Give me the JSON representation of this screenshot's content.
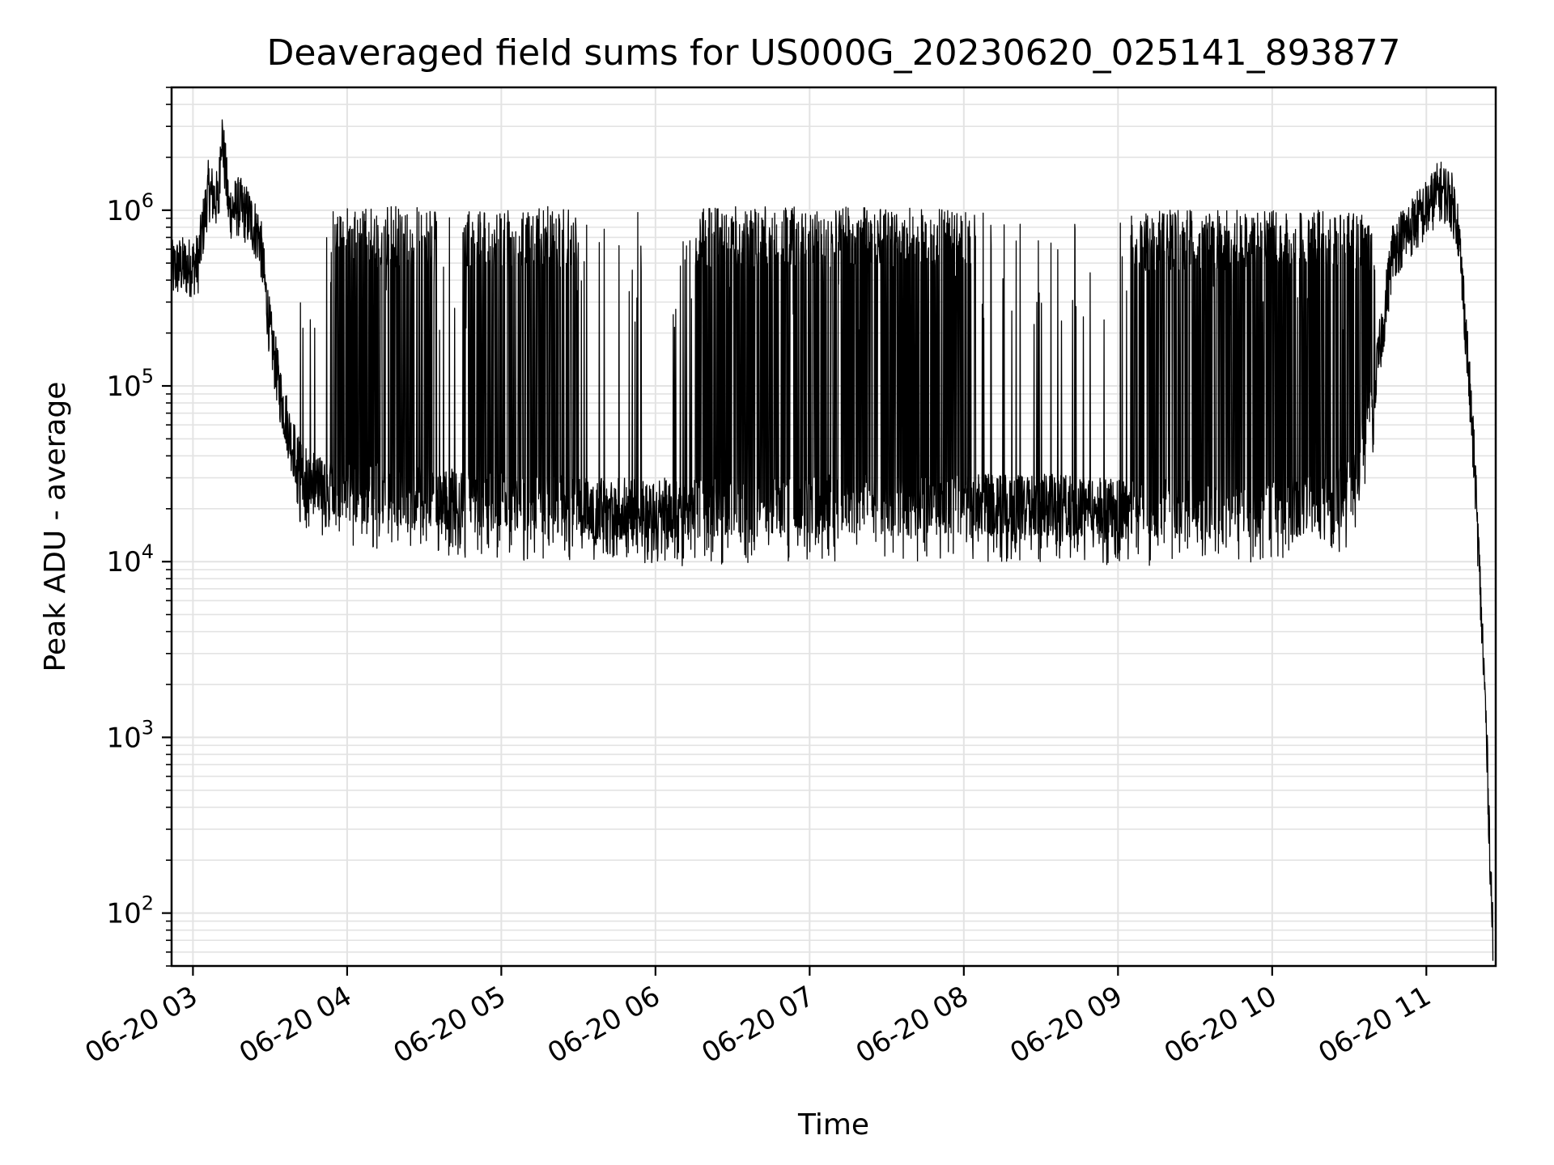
{
  "chart_data": {
    "type": "line",
    "title": "Deaveraged field sums for US000G_20230620_025141_893877",
    "xlabel": "Time",
    "ylabel": "Peak ADU - average",
    "yscale": "log",
    "ylim": [
      50,
      5000000
    ],
    "xlim": [
      "2023-06-20 02:51:41",
      "2023-06-20 11:27:00"
    ],
    "grid": true,
    "x_ticks": [
      {
        "label": "06-20 03",
        "t": "2023-06-20 03:00"
      },
      {
        "label": "06-20 04",
        "t": "2023-06-20 04:00"
      },
      {
        "label": "06-20 05",
        "t": "2023-06-20 05:00"
      },
      {
        "label": "06-20 06",
        "t": "2023-06-20 06:00"
      },
      {
        "label": "06-20 07",
        "t": "2023-06-20 07:00"
      },
      {
        "label": "06-20 08",
        "t": "2023-06-20 08:00"
      },
      {
        "label": "06-20 09",
        "t": "2023-06-20 09:00"
      },
      {
        "label": "06-20 10",
        "t": "2023-06-20 10:00"
      },
      {
        "label": "06-20 11",
        "t": "2023-06-20 11:00"
      }
    ],
    "y_ticks": [
      {
        "base": "10",
        "exp": "2",
        "value": 100
      },
      {
        "base": "10",
        "exp": "3",
        "value": 1000
      },
      {
        "base": "10",
        "exp": "4",
        "value": 10000
      },
      {
        "base": "10",
        "exp": "5",
        "value": 100000
      },
      {
        "base": "10",
        "exp": "6",
        "value": 1000000
      }
    ],
    "series": [
      {
        "color": "#000000",
        "x": [
          "2023-06-20 02:51:41",
          "2023-06-20 02:55",
          "2023-06-20 02:58",
          "2023-06-20 03:02",
          "2023-06-20 03:06",
          "2023-06-20 03:10",
          "2023-06-20 03:11",
          "2023-06-20 03:14",
          "2023-06-20 03:18",
          "2023-06-20 03:22",
          "2023-06-20 03:26",
          "2023-06-20 03:30",
          "2023-06-20 03:34",
          "2023-06-20 03:38",
          "2023-06-20 03:42",
          "2023-06-20 03:46",
          "2023-06-20 03:52",
          "2023-06-20 03:58",
          "2023-06-20 04:05",
          "2023-06-20 04:12",
          "2023-06-20 04:20",
          "2023-06-20 04:28",
          "2023-06-20 04:36",
          "2023-06-20 04:45",
          "2023-06-20 04:55",
          "2023-06-20 05:05",
          "2023-06-20 05:15",
          "2023-06-20 05:25",
          "2023-06-20 05:35",
          "2023-06-20 05:45",
          "2023-06-20 05:55",
          "2023-06-20 06:05",
          "2023-06-20 06:15",
          "2023-06-20 06:25",
          "2023-06-20 06:35",
          "2023-06-20 06:45",
          "2023-06-20 06:55",
          "2023-06-20 07:05",
          "2023-06-20 07:15",
          "2023-06-20 07:25",
          "2023-06-20 07:35",
          "2023-06-20 07:45",
          "2023-06-20 07:55",
          "2023-06-20 08:05",
          "2023-06-20 08:15",
          "2023-06-20 08:25",
          "2023-06-20 08:35",
          "2023-06-20 08:45",
          "2023-06-20 08:55",
          "2023-06-20 09:05",
          "2023-06-20 09:15",
          "2023-06-20 09:25",
          "2023-06-20 09:35",
          "2023-06-20 09:45",
          "2023-06-20 09:55",
          "2023-06-20 10:05",
          "2023-06-20 10:15",
          "2023-06-20 10:25",
          "2023-06-20 10:33",
          "2023-06-20 10:40",
          "2023-06-20 10:47",
          "2023-06-20 10:54",
          "2023-06-20 11:00",
          "2023-06-20 11:05",
          "2023-06-20 11:09",
          "2023-06-20 11:12",
          "2023-06-20 11:15",
          "2023-06-20 11:19",
          "2023-06-20 11:23",
          "2023-06-20 11:26"
        ],
        "y": [
          450000,
          480000,
          470000,
          500000,
          1300000,
          1100000,
          3000000,
          1000000,
          1050000,
          900000,
          700000,
          200000,
          90000,
          50000,
          32000,
          28000,
          27000,
          26000,
          25000,
          25000,
          24000,
          24000,
          23000,
          22000,
          22000,
          21000,
          21000,
          21000,
          20000,
          20000,
          20000,
          20000,
          20000,
          20000,
          20000,
          20000,
          21000,
          21000,
          21000,
          21000,
          21000,
          21000,
          21000,
          21000,
          21000,
          21000,
          21000,
          21000,
          20000,
          20000,
          20000,
          20000,
          20000,
          20000,
          20000,
          20000,
          21000,
          22000,
          30000,
          100000,
          600000,
          800000,
          1000000,
          1300000,
          1200000,
          900000,
          250000,
          30000,
          1500,
          60
        ],
        "spikes": {
          "bands": [
            {
              "from": "2023-06-20 03:55",
              "to": "2023-06-20 04:35",
              "high": 1050000
            },
            {
              "from": "2023-06-20 04:45",
              "to": "2023-06-20 05:30",
              "high": 1050000
            },
            {
              "from": "2023-06-20 06:15",
              "to": "2023-06-20 08:05",
              "high": 1050000
            },
            {
              "from": "2023-06-20 09:05",
              "to": "2023-06-20 10:40",
              "high": 1000000
            }
          ],
          "sparse_from": "2023-06-20 03:40",
          "sparse_to": "2023-06-20 10:40"
        }
      }
    ]
  }
}
